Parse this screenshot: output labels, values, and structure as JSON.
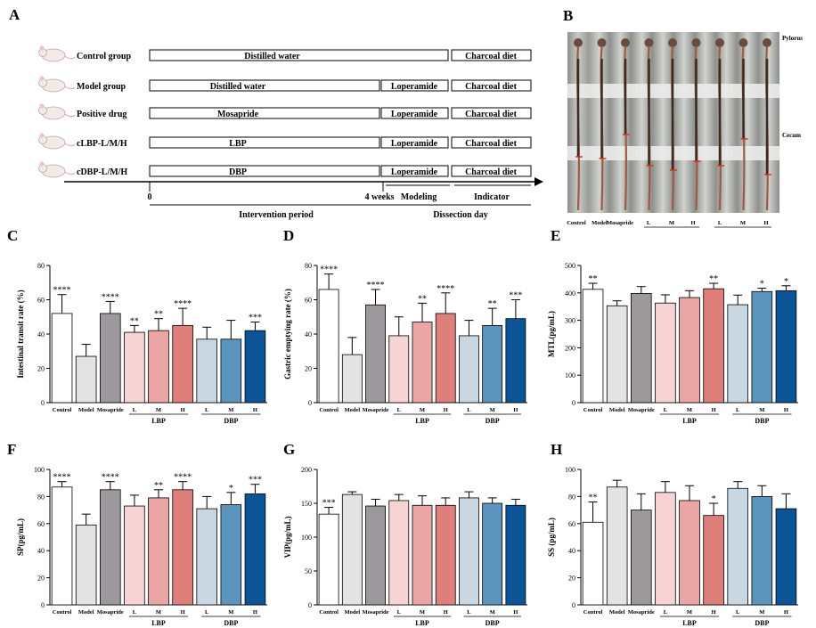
{
  "panel_a": {
    "letter": "A",
    "groups": [
      {
        "label": "Control group",
        "phase1": "Distilled water",
        "phase2": "",
        "phase3": "Charcoal diet"
      },
      {
        "label": "Model group",
        "phase1": "Distilled water",
        "phase2": "Loperamide",
        "phase3": "Charcoal diet"
      },
      {
        "label": "Positive drug",
        "phase1": "Mosapride",
        "phase2": "Loperamide",
        "phase3": "Charcoal diet"
      },
      {
        "label": "cLBP-L/M/H",
        "phase1": "LBP",
        "phase2": "Loperamide",
        "phase3": "Charcoal diet"
      },
      {
        "label": "cDBP-L/M/H",
        "phase1": "DBP",
        "phase2": "Loperamide",
        "phase3": "Charcoal diet"
      }
    ],
    "tick_start": "0",
    "tick_4w": "4 weeks",
    "modeling": "Modeling",
    "indicator": "Indicator",
    "intervention": "Intervention period",
    "dissection": "Dissection day"
  },
  "panel_b": {
    "letter": "B",
    "pylorus": "Pylorus",
    "cecum": "Cecum",
    "labels": [
      "Control",
      "Model",
      "Mosapride",
      "L",
      "M",
      "H",
      "L",
      "M",
      "H"
    ],
    "lbp": "LBP",
    "dbp": "DBP"
  },
  "colors": [
    "#ffffff",
    "#e3e3e3",
    "#9d989c",
    "#f8d3d4",
    "#eba6a4",
    "#df7f7a",
    "#c9d7e2",
    "#5b95be",
    "#0b5596"
  ],
  "chart_data": [
    {
      "panel": "C",
      "type": "bar",
      "title": "",
      "xlabel": "",
      "ylabel": "Intestinal transit rate (%)",
      "ylim": [
        0,
        80
      ],
      "yticks": [
        0,
        20,
        40,
        60,
        80
      ],
      "categories": [
        "Control",
        "Model",
        "Mosapride",
        "L",
        "M",
        "H",
        "L",
        "M",
        "H"
      ],
      "values": [
        52,
        27,
        52,
        41,
        42,
        45,
        37,
        37,
        42
      ],
      "errors": [
        11,
        7,
        7,
        4,
        7,
        10,
        7,
        11,
        5
      ],
      "sig": [
        "****",
        "",
        "****",
        "**",
        "**",
        "****",
        "",
        "",
        "***"
      ],
      "group_labels": [
        "LBP",
        "DBP"
      ]
    },
    {
      "panel": "D",
      "type": "bar",
      "title": "",
      "xlabel": "",
      "ylabel": "Gastric emptying rate (%)",
      "ylim": [
        0,
        80
      ],
      "yticks": [
        0,
        20,
        40,
        60,
        80
      ],
      "categories": [
        "Control",
        "Model",
        "Mosapride",
        "L",
        "M",
        "H",
        "L",
        "M",
        "H"
      ],
      "values": [
        66,
        28,
        57,
        39,
        47,
        52,
        39,
        45,
        49
      ],
      "errors": [
        9,
        10,
        9,
        11,
        11,
        12,
        9,
        10,
        11
      ],
      "sig": [
        "****",
        "",
        "****",
        "",
        "**",
        "****",
        "",
        "**",
        "***"
      ],
      "group_labels": [
        "LBP",
        "DBP"
      ]
    },
    {
      "panel": "E",
      "type": "bar",
      "title": "",
      "xlabel": "",
      "ylabel": "MTL(pg/mL)",
      "ylim": [
        0,
        500
      ],
      "yticks": [
        0,
        100,
        200,
        300,
        400,
        500
      ],
      "categories": [
        "Control",
        "Model",
        "Mosapride",
        "L",
        "M",
        "H",
        "L",
        "M",
        "H"
      ],
      "values": [
        413,
        353,
        398,
        363,
        383,
        415,
        357,
        405,
        408
      ],
      "errors": [
        22,
        18,
        25,
        30,
        25,
        20,
        35,
        12,
        18
      ],
      "sig": [
        "**",
        "",
        "",
        "",
        "",
        "**",
        "",
        "*",
        "*"
      ],
      "group_labels": [
        "LBP",
        "DBP"
      ]
    },
    {
      "panel": "F",
      "type": "bar",
      "title": "",
      "xlabel": "",
      "ylabel": "SP(pg/mL)",
      "ylim": [
        0,
        100
      ],
      "yticks": [
        0,
        20,
        40,
        60,
        80,
        100
      ],
      "categories": [
        "Control",
        "Model",
        "Mosapride",
        "L",
        "M",
        "H",
        "L",
        "M",
        "H"
      ],
      "values": [
        87,
        59,
        85,
        73,
        79,
        85,
        71,
        74,
        82
      ],
      "errors": [
        4,
        8,
        6,
        8,
        6,
        6,
        9,
        9,
        7
      ],
      "sig": [
        "****",
        "",
        "****",
        "",
        "**",
        "****",
        "",
        "*",
        "***"
      ],
      "group_labels": [
        "LBP",
        "DBP"
      ]
    },
    {
      "panel": "G",
      "type": "bar",
      "title": "",
      "xlabel": "",
      "ylabel": "VIP(pg/mL)",
      "ylim": [
        0,
        200
      ],
      "yticks": [
        0,
        50,
        100,
        150,
        200
      ],
      "categories": [
        "Control",
        "Model",
        "Mosapride",
        "L",
        "M",
        "H",
        "L",
        "M",
        "H"
      ],
      "values": [
        134,
        163,
        146,
        154,
        147,
        147,
        158,
        150,
        147
      ],
      "errors": [
        10,
        4,
        10,
        9,
        14,
        11,
        9,
        8,
        9
      ],
      "sig": [
        "***",
        "",
        "",
        "",
        "",
        "",
        "",
        "",
        ""
      ],
      "group_labels": [
        "LBP",
        "DBP"
      ]
    },
    {
      "panel": "H",
      "type": "bar",
      "title": "",
      "xlabel": "",
      "ylabel": "SS (pg/mL)",
      "ylim": [
        0,
        100
      ],
      "yticks": [
        0,
        20,
        40,
        60,
        80,
        100
      ],
      "categories": [
        "Control",
        "Model",
        "Mosapride",
        "L",
        "M",
        "H",
        "L",
        "M",
        "H"
      ],
      "values": [
        61,
        87,
        70,
        83,
        77,
        66,
        86,
        80,
        71
      ],
      "errors": [
        15,
        5,
        12,
        8,
        11,
        9,
        5,
        8,
        11
      ],
      "sig": [
        "**",
        "",
        "",
        "",
        "",
        "*",
        "",
        "",
        ""
      ],
      "group_labels": [
        "LBP",
        "DBP"
      ]
    }
  ]
}
